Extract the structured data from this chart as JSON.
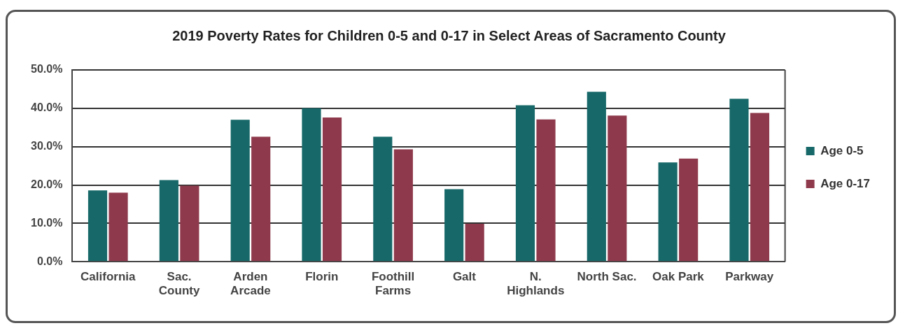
{
  "chart_data": {
    "type": "bar",
    "title": "2019 Poverty Rates for Children 0-5 and 0-17 in Select Areas of Sacramento County",
    "categories": [
      "California",
      "Sac.\nCounty",
      "Arden\nArcade",
      "Florin",
      "Foothill\nFarms",
      "Galt",
      "N.\nHighlands",
      "North Sac.",
      "Oak Park",
      "Parkway"
    ],
    "series": [
      {
        "name": "Age 0-5",
        "color": "#176869",
        "values": [
          18.6,
          21.3,
          37.0,
          40.0,
          32.6,
          18.9,
          40.8,
          44.3,
          25.9,
          42.5
        ]
      },
      {
        "name": "Age 0-17",
        "color": "#8f3a4c",
        "values": [
          18.0,
          19.8,
          32.6,
          37.6,
          29.3,
          9.9,
          37.1,
          38.1,
          26.9,
          38.8
        ]
      }
    ],
    "ylim": [
      0,
      50
    ],
    "yticks": [
      {
        "value": 0,
        "label": "0.0%"
      },
      {
        "value": 10,
        "label": "10.0%"
      },
      {
        "value": 20,
        "label": "20.0%"
      },
      {
        "value": 30,
        "label": "30.0%"
      },
      {
        "value": 40,
        "label": "40.0%"
      },
      {
        "value": 50,
        "label": "50.0%"
      }
    ],
    "grid": "y",
    "legend": "right"
  }
}
